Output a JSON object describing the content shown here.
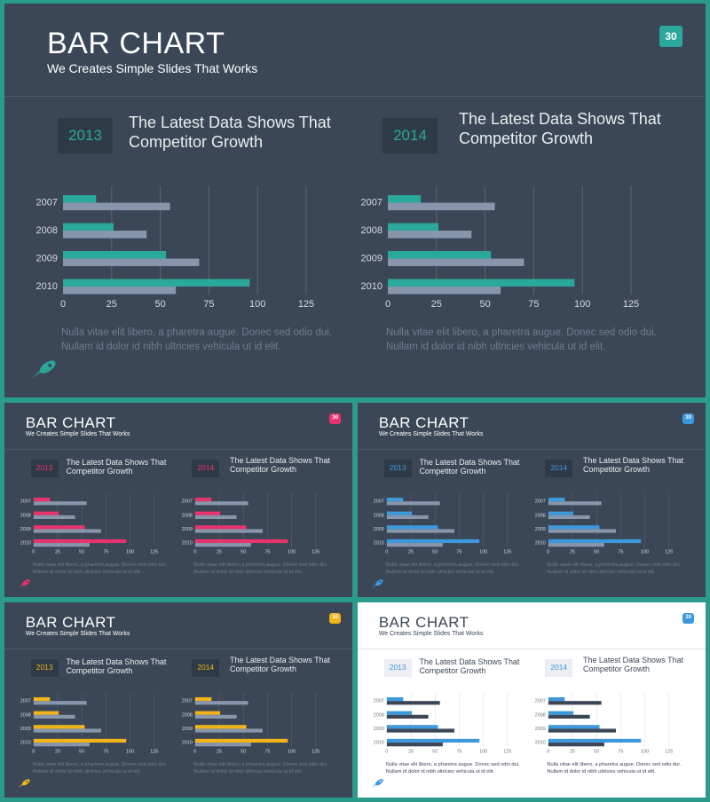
{
  "common": {
    "title": "BAR CHART",
    "subtitle": "We Creates Simple Slides That Works",
    "page_number": "30",
    "headline_line1": "The Latest Data Shows That",
    "headline_line2": "Competitor Growth",
    "desc_line1": "Nulla vitae elit libero, a pharetra augue. Donec sed odio dui.",
    "desc_line2": "Nullam id dolor id nibh ultricies vehicula ut id elit.",
    "rocket_icon": "rocket-icon"
  },
  "slides": [
    {
      "id": "slide-teal-large",
      "accent": "#2aa899",
      "theme": "dark"
    },
    {
      "id": "slide-pink",
      "accent": "#e8336d",
      "theme": "dark"
    },
    {
      "id": "slide-blue-dark",
      "accent": "#3d98dc",
      "theme": "dark"
    },
    {
      "id": "slide-yellow",
      "accent": "#f2b31b",
      "theme": "dark"
    },
    {
      "id": "slide-blue-light",
      "accent": "#3d98dc",
      "theme": "light"
    }
  ],
  "chart_data": [
    {
      "type": "bar",
      "orientation": "horizontal",
      "title": "2013",
      "categories": [
        "2007",
        "2008",
        "2009",
        "2010"
      ],
      "series": [
        {
          "values": [
            17,
            26,
            53,
            96
          ]
        },
        {
          "values": [
            55,
            43,
            70,
            58
          ]
        }
      ],
      "xlim": [
        0,
        125
      ],
      "xticks": [
        0,
        25,
        50,
        75,
        100,
        125
      ],
      "grid": true
    },
    {
      "type": "bar",
      "orientation": "horizontal",
      "title": "2014",
      "categories": [
        "2007",
        "2008",
        "2009",
        "2010"
      ],
      "series": [
        {
          "values": [
            17,
            26,
            53,
            96
          ]
        },
        {
          "values": [
            55,
            43,
            70,
            58
          ]
        }
      ],
      "xlim": [
        0,
        125
      ],
      "xticks": [
        0,
        25,
        50,
        75,
        100,
        125
      ],
      "grid": true
    }
  ]
}
